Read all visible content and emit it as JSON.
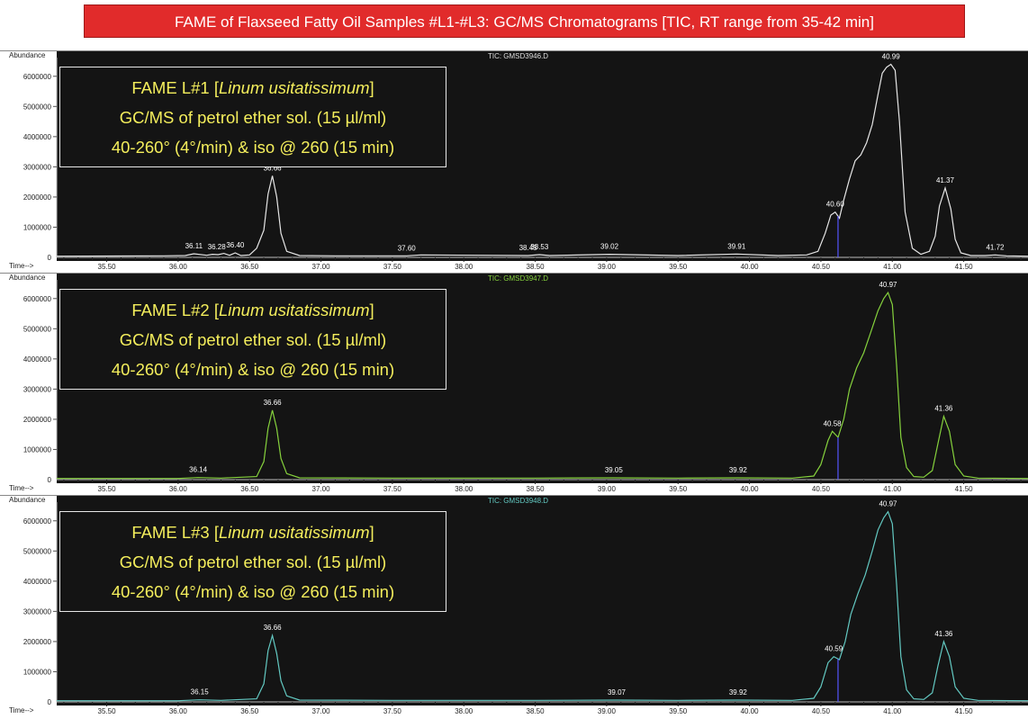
{
  "title": "FAME of Flaxseed Fatty Oil Samples #L1-#L3: GC/MS Chromatograms [TIC, RT range from 35-42 min]",
  "chart_data": [
    {
      "type": "line",
      "file_label": "TIC: GMSD3946.D",
      "ylabel": "Abundance",
      "xlabel": "Time-->",
      "xlim": [
        35.15,
        41.95
      ],
      "ylim": [
        0,
        6500000
      ],
      "xticks": [
        "35.50",
        "36.00",
        "36.50",
        "37.00",
        "37.50",
        "38.00",
        "38.50",
        "39.00",
        "39.50",
        "40.00",
        "40.50",
        "41.00",
        "41.50"
      ],
      "yticks": [
        "1000000",
        "2000000",
        "3000000",
        "4000000",
        "5000000",
        "6000000"
      ],
      "color": "#e6e6e6",
      "box": {
        "line1_pre": "FAME L#1 [",
        "species": "Linum usitatissimum",
        "line1_post": "]",
        "line2": "GC/MS of petrol ether sol. (15 µl/ml)",
        "line3": "40-260° (4°/min) & iso @ 260 (15 min)"
      },
      "series": [
        {
          "x": [
            35.15,
            35.9,
            36.05,
            36.11,
            36.2,
            36.24,
            36.28,
            36.32,
            36.36,
            36.4,
            36.44,
            36.5,
            36.55,
            36.6,
            36.63,
            36.66,
            36.69,
            36.72,
            36.76,
            36.85,
            37.1,
            37.6,
            37.7,
            38.45,
            38.53,
            38.6,
            39.02,
            39.5,
            39.91,
            40.2,
            40.4,
            40.48,
            40.53,
            40.57,
            40.6,
            40.63,
            40.66,
            40.7,
            40.74,
            40.78,
            40.82,
            40.86,
            40.9,
            40.93,
            40.96,
            40.99,
            41.02,
            41.05,
            41.09,
            41.14,
            41.2,
            41.26,
            41.3,
            41.33,
            41.37,
            41.41,
            41.44,
            41.48,
            41.55,
            41.65,
            41.72,
            41.8,
            41.95
          ],
          "y": [
            40000,
            50000,
            60000,
            120000,
            70000,
            100000,
            90000,
            130000,
            70000,
            150000,
            60000,
            80000,
            300000,
            900000,
            2100000,
            2700000,
            2000000,
            800000,
            200000,
            60000,
            50000,
            50000,
            80000,
            60000,
            90000,
            60000,
            100000,
            60000,
            110000,
            60000,
            80000,
            200000,
            800000,
            1400000,
            1500000,
            1300000,
            1900000,
            2600000,
            3200000,
            3400000,
            3800000,
            4400000,
            5400000,
            6100000,
            6300000,
            6400000,
            6200000,
            4500000,
            1500000,
            300000,
            100000,
            200000,
            700000,
            1700000,
            2300000,
            1600000,
            600000,
            150000,
            60000,
            60000,
            80000,
            50000,
            40000
          ]
        }
      ],
      "peak_labels": [
        {
          "x": 36.11,
          "text": "36.11"
        },
        {
          "x": 36.27,
          "text": "36.28"
        },
        {
          "x": 36.4,
          "text": "36.40"
        },
        {
          "x": 36.66,
          "text": "36.66"
        },
        {
          "x": 37.6,
          "text": "37.60"
        },
        {
          "x": 38.45,
          "text": "38.45"
        },
        {
          "x": 38.53,
          "text": "38.53"
        },
        {
          "x": 39.02,
          "text": "39.02"
        },
        {
          "x": 39.91,
          "text": "39.91"
        },
        {
          "x": 40.6,
          "text": "40.60"
        },
        {
          "x": 40.99,
          "text": "40.99"
        },
        {
          "x": 41.37,
          "text": "41.37"
        },
        {
          "x": 41.72,
          "text": "41.72"
        }
      ]
    },
    {
      "type": "line",
      "file_label": "TIC: GMSD3947.D",
      "ylabel": "Abundance",
      "xlabel": "Time-->",
      "xlim": [
        35.15,
        41.95
      ],
      "ylim": [
        0,
        6500000
      ],
      "xticks": [
        "35.50",
        "36.00",
        "36.50",
        "37.00",
        "37.50",
        "38.00",
        "38.50",
        "39.00",
        "39.50",
        "40.00",
        "40.50",
        "41.00",
        "41.50"
      ],
      "yticks": [
        "1000000",
        "2000000",
        "3000000",
        "4000000",
        "5000000",
        "6000000"
      ],
      "color": "#86d23d",
      "box": {
        "line1_pre": "FAME L#2 [",
        "species": "Linum usitatissimum",
        "line1_post": "]",
        "line2": "GC/MS of petrol ether sol. (15 µl/ml)",
        "line3": "40-260° (4°/min) & iso @ 260 (15 min)"
      },
      "series": [
        {
          "x": [
            35.15,
            36.0,
            36.14,
            36.3,
            36.55,
            36.6,
            36.63,
            36.66,
            36.69,
            36.72,
            36.76,
            36.85,
            37.5,
            38.5,
            39.05,
            39.5,
            39.92,
            40.3,
            40.45,
            40.5,
            40.55,
            40.58,
            40.62,
            40.66,
            40.7,
            40.75,
            40.8,
            40.85,
            40.9,
            40.94,
            40.97,
            41.0,
            41.03,
            41.06,
            41.1,
            41.15,
            41.22,
            41.28,
            41.32,
            41.36,
            41.4,
            41.44,
            41.5,
            41.6,
            41.95
          ],
          "y": [
            40000,
            40000,
            70000,
            50000,
            100000,
            600000,
            1700000,
            2300000,
            1700000,
            700000,
            200000,
            60000,
            50000,
            50000,
            60000,
            50000,
            60000,
            50000,
            120000,
            500000,
            1300000,
            1600000,
            1400000,
            2000000,
            3000000,
            3700000,
            4200000,
            4900000,
            5600000,
            6000000,
            6200000,
            5800000,
            3800000,
            1400000,
            400000,
            100000,
            80000,
            300000,
            1200000,
            2100000,
            1600000,
            500000,
            120000,
            50000,
            40000
          ]
        }
      ],
      "peak_labels": [
        {
          "x": 36.14,
          "text": "36.14"
        },
        {
          "x": 36.66,
          "text": "36.66"
        },
        {
          "x": 39.05,
          "text": "39.05"
        },
        {
          "x": 39.92,
          "text": "39.92"
        },
        {
          "x": 40.58,
          "text": "40.58"
        },
        {
          "x": 40.97,
          "text": "40.97"
        },
        {
          "x": 41.36,
          "text": "41.36"
        }
      ]
    },
    {
      "type": "line",
      "file_label": "TIC: GMSD3948.D",
      "ylabel": "Abundance",
      "xlabel": "Time-->",
      "xlim": [
        35.15,
        41.95
      ],
      "ylim": [
        0,
        6500000
      ],
      "xticks": [
        "35.50",
        "36.00",
        "36.50",
        "37.00",
        "37.50",
        "38.00",
        "38.50",
        "39.00",
        "39.50",
        "40.00",
        "40.50",
        "41.00",
        "41.50"
      ],
      "yticks": [
        "1000000",
        "2000000",
        "3000000",
        "4000000",
        "5000000",
        "6000000"
      ],
      "color": "#63c9c2",
      "box": {
        "line1_pre": "FAME L#3 [",
        "species": "Linum usitatissimum",
        "line1_post": "]",
        "line2": "GC/MS of petrol ether sol. (15 µl/ml)",
        "line3": "40-260° (4°/min) & iso @ 260 (15 min)"
      },
      "series": [
        {
          "x": [
            35.15,
            36.0,
            36.15,
            36.3,
            36.55,
            36.6,
            36.63,
            36.66,
            36.69,
            36.72,
            36.76,
            36.85,
            37.5,
            38.5,
            39.07,
            39.5,
            39.92,
            40.3,
            40.45,
            40.5,
            40.55,
            40.59,
            40.63,
            40.67,
            40.71,
            40.76,
            40.81,
            40.86,
            40.9,
            40.94,
            40.97,
            41.0,
            41.03,
            41.06,
            41.1,
            41.15,
            41.22,
            41.28,
            41.32,
            41.36,
            41.4,
            41.44,
            41.5,
            41.6,
            41.95
          ],
          "y": [
            40000,
            40000,
            70000,
            50000,
            100000,
            600000,
            1700000,
            2200000,
            1600000,
            700000,
            200000,
            60000,
            50000,
            50000,
            60000,
            50000,
            60000,
            50000,
            120000,
            500000,
            1300000,
            1500000,
            1400000,
            2000000,
            2900000,
            3600000,
            4200000,
            5000000,
            5700000,
            6100000,
            6300000,
            5900000,
            3900000,
            1500000,
            400000,
            100000,
            80000,
            300000,
            1200000,
            2000000,
            1500000,
            500000,
            120000,
            50000,
            40000
          ]
        }
      ],
      "peak_labels": [
        {
          "x": 36.15,
          "text": "36.15"
        },
        {
          "x": 36.66,
          "text": "36.66"
        },
        {
          "x": 39.07,
          "text": "39.07"
        },
        {
          "x": 39.92,
          "text": "39.92"
        },
        {
          "x": 40.59,
          "text": "40.59"
        },
        {
          "x": 40.97,
          "text": "40.97"
        },
        {
          "x": 41.36,
          "text": "41.36"
        }
      ]
    }
  ]
}
